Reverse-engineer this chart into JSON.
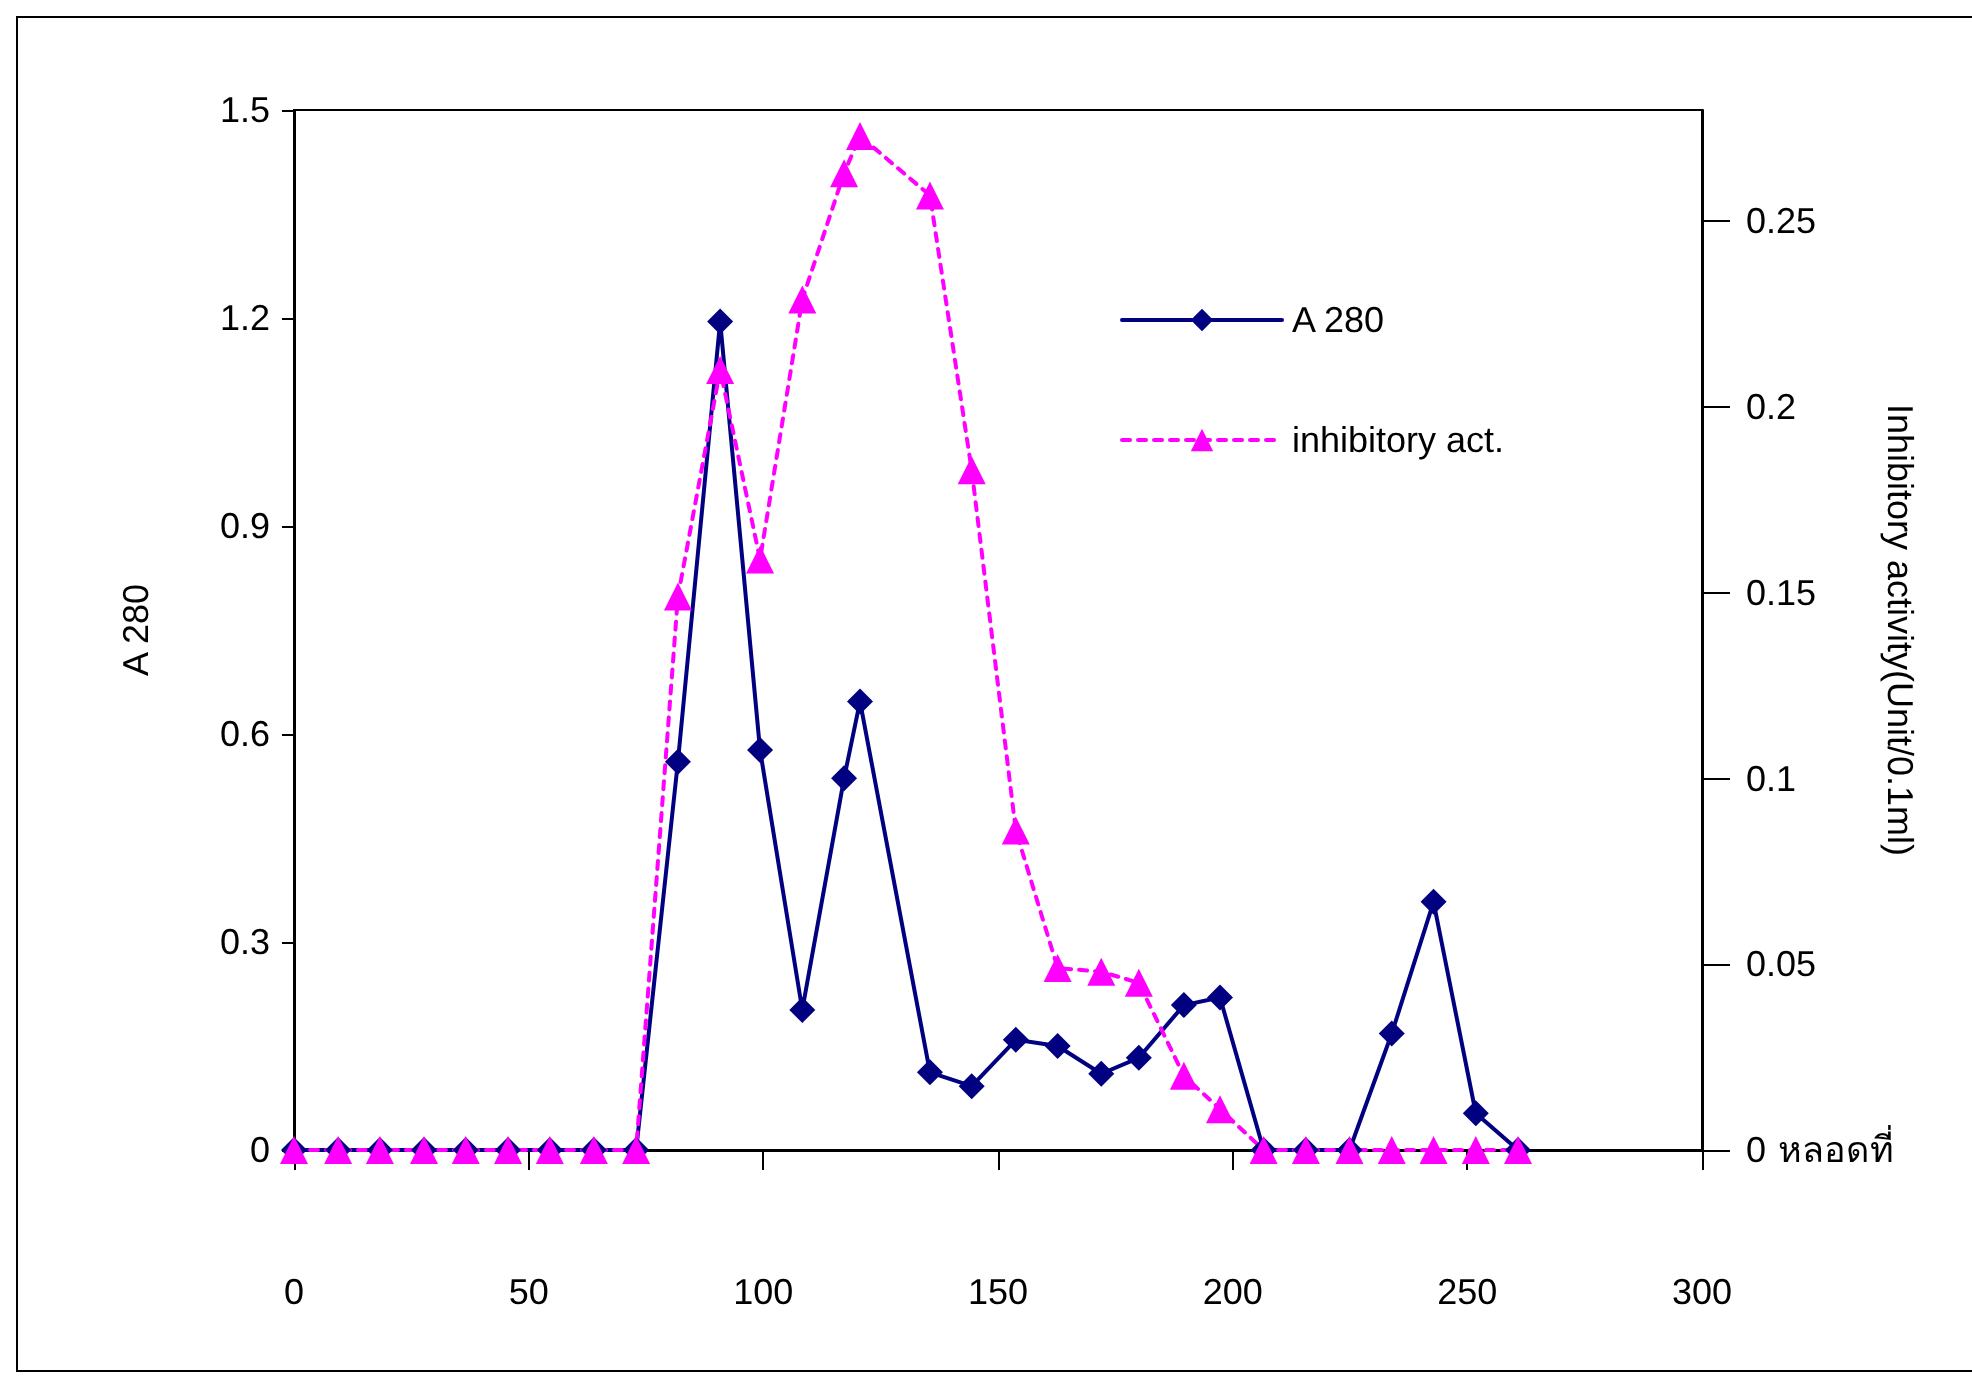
{
  "chart_data": {
    "type": "line",
    "xlabel": "หลอดที่",
    "ylabel": "A 280",
    "y2label": "Inhibitory activity(Unit/0.1ml)",
    "x": [
      0,
      9.4,
      18.3,
      27.7,
      36.6,
      45.6,
      54.5,
      63.9,
      72.9,
      81.8,
      90.8,
      99.3,
      108.3,
      117.2,
      120.6,
      135.5,
      144.4,
      153.8,
      162.7,
      172,
      180,
      189.6,
      197.3,
      206.6,
      215.6,
      224.9,
      233.9,
      242.8,
      251.8,
      260.8
    ],
    "series": [
      {
        "name": "A 280",
        "color": "#000080",
        "marker": "diamond",
        "line_style": "solid",
        "values": [
          0,
          0,
          0,
          0,
          0,
          0,
          0,
          0,
          0,
          0.56,
          1.195,
          0.577,
          0.202,
          0.536,
          0.647,
          0.112,
          0.092,
          0.159,
          0.15,
          0.11,
          0.133,
          0.209,
          0.22,
          0,
          0,
          0,
          0.168,
          0.358,
          0.053,
          0
        ]
      },
      {
        "name": "inhibitory act.",
        "color": "#ff00ff",
        "marker": "triangle",
        "line_style": "dashed",
        "axis": "y2",
        "values": [
          0,
          0,
          0,
          0,
          0,
          0,
          0,
          0,
          0,
          0.149,
          0.21,
          0.159,
          0.229,
          0.263,
          0.273,
          0.257,
          0.183,
          0.086,
          0.049,
          0.048,
          0.045,
          0.02,
          0.011,
          0,
          0,
          0,
          0,
          0,
          0,
          0
        ]
      }
    ],
    "xlim": [
      0,
      300
    ],
    "xticks": [
      0,
      50,
      100,
      150,
      200,
      250,
      300
    ],
    "ylim": [
      0,
      1.5
    ],
    "yticks": [
      0,
      0.3,
      0.6,
      0.9,
      1.2,
      1.5
    ],
    "y2lim": [
      0,
      0.28
    ],
    "y2ticks": [
      0,
      0.05,
      0.1,
      0.15,
      0.2,
      0.25
    ],
    "grid": false,
    "legend": "top right"
  }
}
